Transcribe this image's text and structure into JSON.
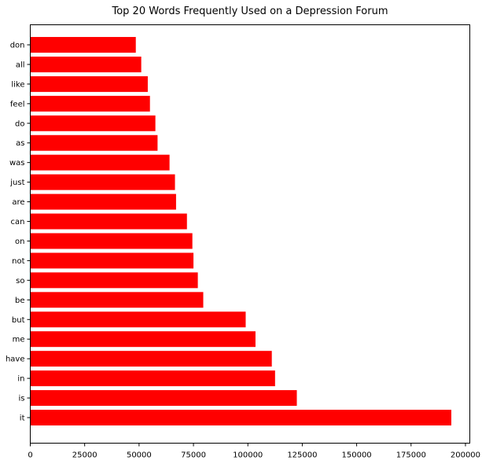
{
  "chart_data": {
    "type": "bar",
    "orientation": "horizontal",
    "title": "Top 20 Words Frequently Used on a Depression Forum",
    "xlabel": "",
    "ylabel": "",
    "bar_color": "#ff0000",
    "grid": false,
    "xlim": [
      0,
      202000
    ],
    "xticks": [
      0,
      25000,
      50000,
      75000,
      100000,
      125000,
      150000,
      175000,
      200000
    ],
    "xtick_labels": [
      "0",
      "25000",
      "50000",
      "75000",
      "100000",
      "125000",
      "150000",
      "175000",
      "200000"
    ],
    "categories": [
      "it",
      "is",
      "in",
      "have",
      "me",
      "but",
      "be",
      "so",
      "not",
      "on",
      "can",
      "are",
      "just",
      "was",
      "as",
      "do",
      "feel",
      "like",
      "all",
      "don"
    ],
    "values": [
      193500,
      122500,
      112500,
      111000,
      103500,
      99000,
      79500,
      77000,
      75000,
      74500,
      72000,
      67000,
      66500,
      64000,
      58500,
      57500,
      55000,
      54000,
      51000,
      48500
    ]
  }
}
